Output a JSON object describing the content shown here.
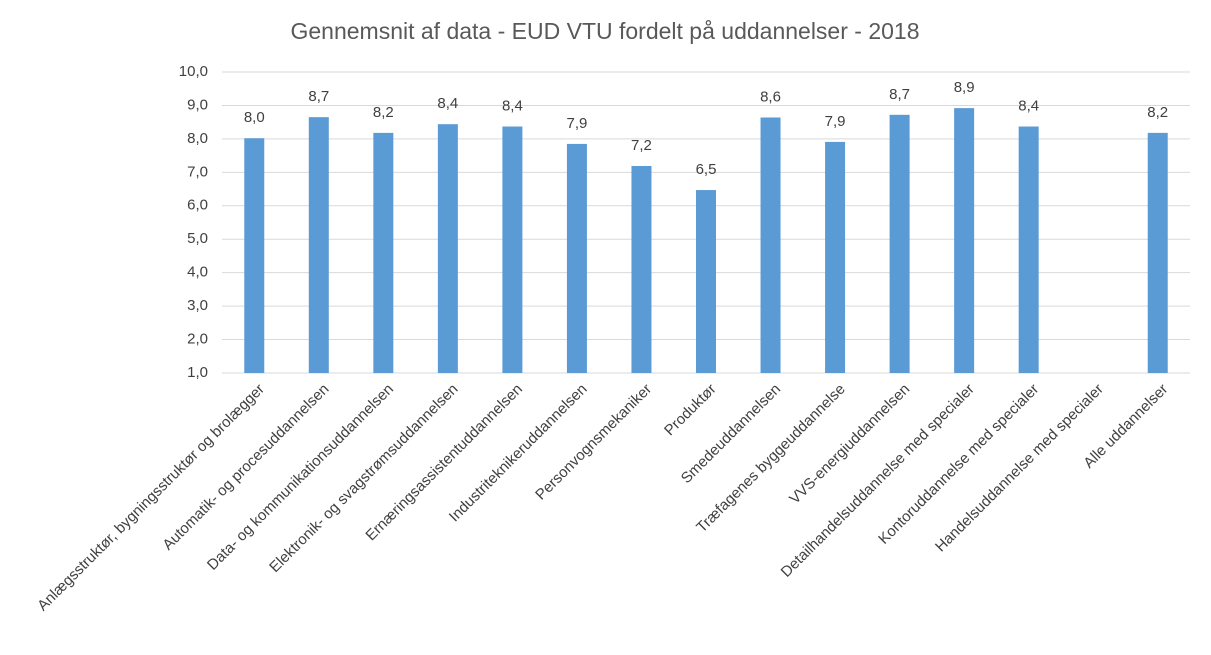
{
  "chart_data": {
    "type": "bar",
    "title": "Gennemsnit af data -  EUD VTU fordelt på uddannelser - 2018",
    "categories": [
      "Anlægsstruktør, bygningsstruktør og brolægger",
      "Automatik- og procesuddannelsen",
      "Data- og kommunikationsuddannelsen",
      "Elektronik- og svagstrømsuddannelsen",
      "Ernæringsassistentuddannelsen",
      "Industriteknikeruddannelsen",
      "Personvognsmekaniker",
      "Produktør",
      "Smedeuddannelsen",
      "Træfagenes byggeuddannelse",
      "VVS-energiuddannelsen",
      "Detailhandelsuddannelse med specialer",
      "Kontoruddannelse med specialer",
      "Handelsuddannelse med specialer",
      "Alle uddannelser"
    ],
    "values": [
      8.02,
      8.65,
      8.18,
      8.44,
      8.37,
      7.85,
      7.19,
      6.47,
      8.64,
      7.91,
      8.72,
      8.92,
      8.37,
      null,
      8.18
    ],
    "value_labels": [
      "8,0",
      "8,7",
      "8,2",
      "8,4",
      "8,4",
      "7,9",
      "7,2",
      "6,5",
      "8,6",
      "7,9",
      "8,7",
      "8,9",
      "8,4",
      null,
      "8,2"
    ],
    "color": "#5b9bd5",
    "ylim": [
      1,
      10
    ],
    "yticks": [
      {
        "value": 1,
        "label": "1,0"
      },
      {
        "value": 2,
        "label": "2,0"
      },
      {
        "value": 3,
        "label": "3,0"
      },
      {
        "value": 4,
        "label": "4,0"
      },
      {
        "value": 5,
        "label": "5,0"
      },
      {
        "value": 6,
        "label": "6,0"
      },
      {
        "value": 7,
        "label": "7,0"
      },
      {
        "value": 8,
        "label": "8,0"
      },
      {
        "value": 9,
        "label": "9,0"
      },
      {
        "value": 10,
        "label": "10,0"
      }
    ],
    "grid": true
  }
}
